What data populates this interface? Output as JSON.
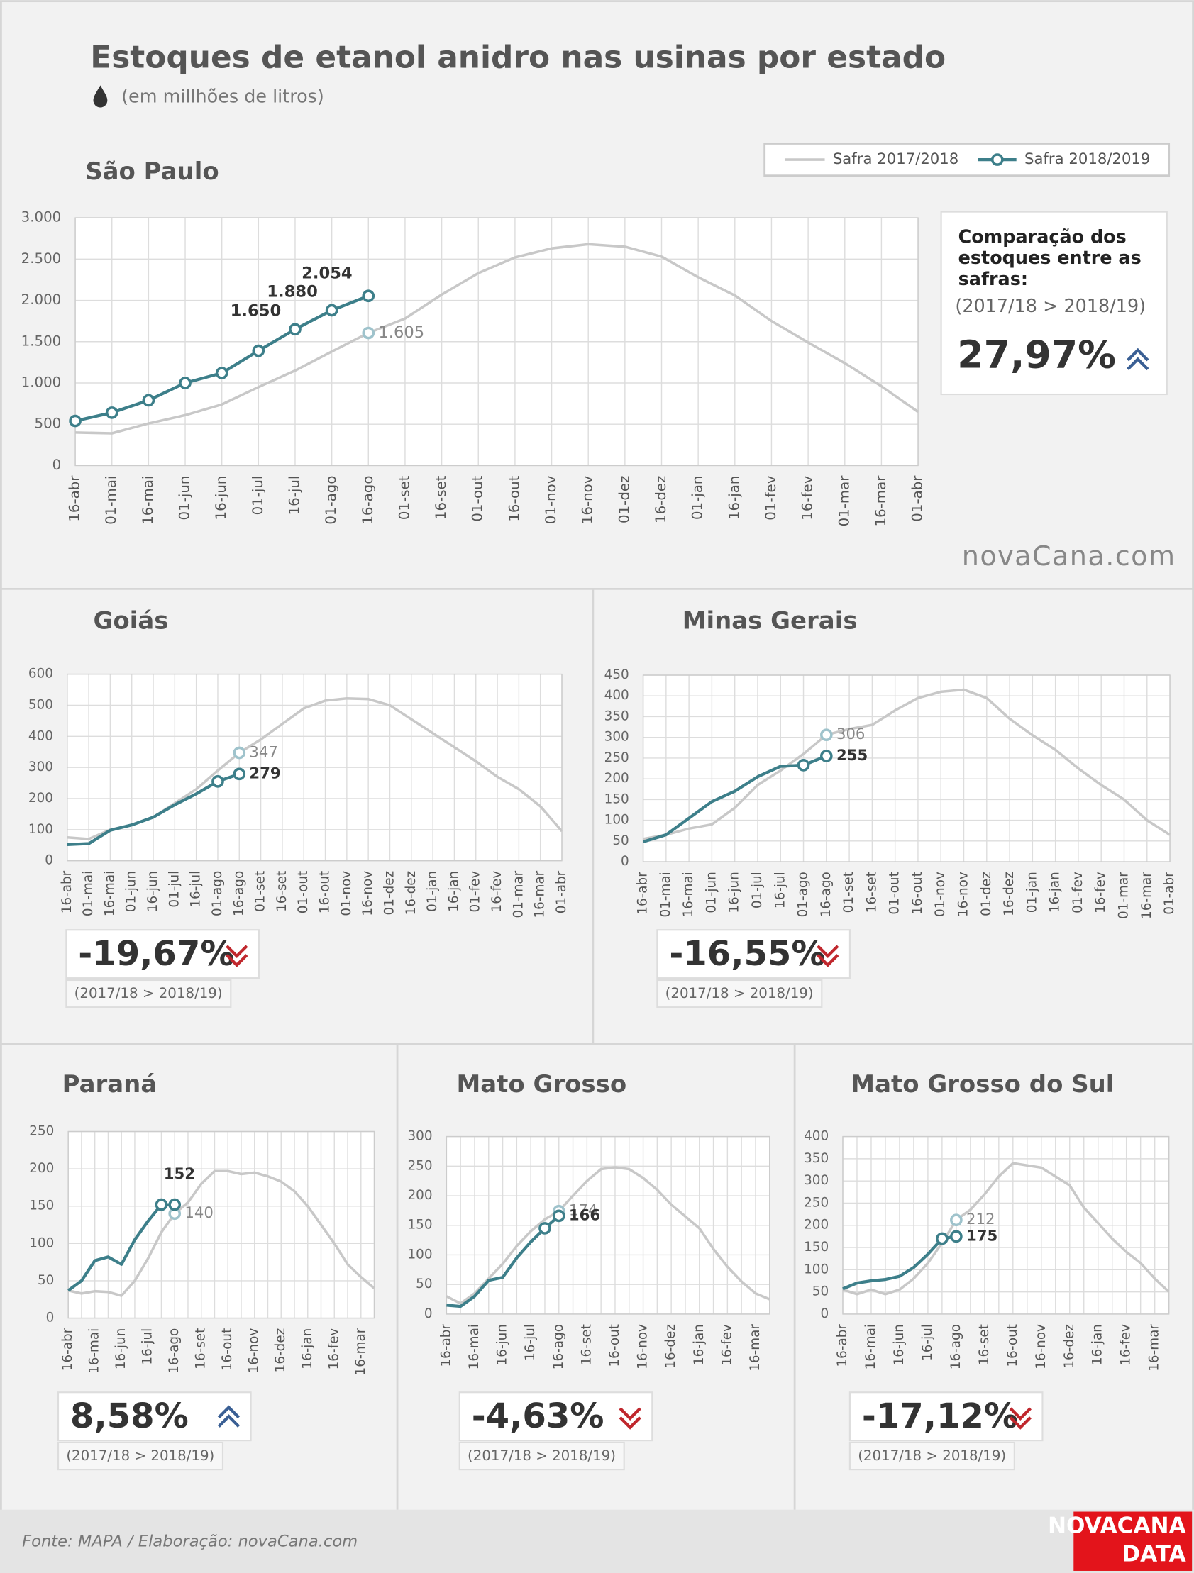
{
  "header": {
    "title": "Estoques de etanol anidro nas usinas por estado",
    "subtitle": "(em millhões de litros)"
  },
  "watermark": "novaCana.com",
  "footer": {
    "source": "Fonte: MAPA  / Elaboração: novaCana.com",
    "logo_top": "NOVACANA",
    "logo_bottom": "DATA"
  },
  "chart_data": [
    {
      "type": "line",
      "title": "São Paulo",
      "categories": [
        "16-abr",
        "01-mai",
        "16-mai",
        "01-jun",
        "16-jun",
        "01-jul",
        "16-jul",
        "01-ago",
        "16-ago",
        "01-set",
        "16-set",
        "01-out",
        "16-out",
        "01-nov",
        "16-nov",
        "01-dez",
        "16-dez",
        "01-jan",
        "16-jan",
        "01-fev",
        "16-fev",
        "01-mar",
        "16-mar",
        "01-abr"
      ],
      "series": [
        {
          "name": "Safra 2017/2018",
          "color": "#c8c8c8",
          "values": [
            400,
            390,
            510,
            610,
            740,
            950,
            1150,
            1380,
            1605,
            1780,
            2070,
            2330,
            2520,
            2630,
            2680,
            2650,
            2530,
            2280,
            2060,
            1750,
            1490,
            1240,
            960,
            650
          ],
          "value_labels": [
            null,
            null,
            null,
            null,
            null,
            null,
            null,
            null,
            "1.605",
            null,
            null,
            null,
            null,
            null,
            null,
            null,
            null,
            null,
            null,
            null,
            null,
            null,
            null,
            null
          ]
        },
        {
          "name": "Safra 2018/2019",
          "color": "#3d7f8a",
          "markers": true,
          "values": [
            540,
            640,
            790,
            1000,
            1120,
            1390,
            1650,
            1880,
            2054,
            null,
            null,
            null,
            null,
            null,
            null,
            null,
            null,
            null,
            null,
            null,
            null,
            null,
            null,
            null
          ],
          "value_labels": [
            null,
            null,
            null,
            null,
            null,
            null,
            "1.650",
            "1.880",
            "2.054",
            null,
            null,
            null,
            null,
            null,
            null,
            null,
            null,
            null,
            null,
            null,
            null,
            null,
            null,
            null
          ]
        }
      ],
      "ylim": [
        0,
        3000
      ],
      "yticks": [
        0,
        500,
        {
          "value": 1000,
          "label": "1.000"
        },
        {
          "value": 1500,
          "label": "1.500"
        },
        {
          "value": 2000,
          "label": "2.000"
        },
        {
          "value": 2500,
          "label": "2.500"
        },
        {
          "value": 3000,
          "label": "3.000"
        }
      ],
      "grid": true,
      "legend": "top-right",
      "comparison": {
        "heading": "Comparação dos estoques entre as safras:",
        "note": "(2017/18 > 2018/19)",
        "value": "27,97%",
        "trend": "up"
      }
    },
    {
      "type": "line",
      "title": "Goiás",
      "categories": [
        "16-abr",
        "01-mai",
        "16-mai",
        "01-jun",
        "16-jun",
        "01-jul",
        "16-jul",
        "01-ago",
        "16-ago",
        "01-set",
        "16-set",
        "01-out",
        "16-out",
        "01-nov",
        "16-nov",
        "01-dez",
        "16-dez",
        "01-jan",
        "16-jan",
        "01-fev",
        "16-fev",
        "01-mar",
        "16-mar",
        "01-abr"
      ],
      "series": [
        {
          "color": "#c8c8c8",
          "values": [
            75,
            70,
            100,
            115,
            140,
            185,
            230,
            290,
            347,
            390,
            440,
            490,
            515,
            522,
            520,
            500,
            455,
            410,
            365,
            320,
            270,
            230,
            175,
            95
          ],
          "value_labels": [
            null,
            null,
            null,
            null,
            null,
            null,
            null,
            null,
            "347",
            null,
            null,
            null,
            null,
            null,
            null,
            null,
            null,
            null,
            null,
            null,
            null,
            null,
            null,
            null
          ]
        },
        {
          "color": "#3d7f8a",
          "values": [
            52,
            55,
            98,
            115,
            140,
            180,
            215,
            255,
            279,
            null,
            null,
            null,
            null,
            null,
            null,
            null,
            null,
            null,
            null,
            null,
            null,
            null,
            null,
            null
          ],
          "value_labels": [
            null,
            null,
            null,
            null,
            null,
            null,
            null,
            null,
            "279",
            null,
            null,
            null,
            null,
            null,
            null,
            null,
            null,
            null,
            null,
            null,
            null,
            null,
            null,
            null
          ]
        }
      ],
      "ylim": [
        0,
        600
      ],
      "yticks": [
        0,
        100,
        200,
        300,
        400,
        500,
        600
      ],
      "grid": true,
      "comparison": {
        "value": "-19,67%",
        "note": "(2017/18 > 2018/19)",
        "trend": "down"
      }
    },
    {
      "type": "line",
      "title": "Minas Gerais",
      "categories": [
        "16-abr",
        "01-mai",
        "16-mai",
        "01-jun",
        "16-jun",
        "01-jul",
        "16-jul",
        "01-ago",
        "16-ago",
        "01-set",
        "16-set",
        "01-out",
        "16-out",
        "01-nov",
        "16-nov",
        "01-dez",
        "16-dez",
        "01-jan",
        "16-jan",
        "01-fev",
        "16-fev",
        "01-mar",
        "16-mar",
        "01-abr"
      ],
      "series": [
        {
          "color": "#c8c8c8",
          "values": [
            55,
            65,
            80,
            90,
            130,
            185,
            220,
            260,
            306,
            320,
            330,
            365,
            395,
            410,
            415,
            395,
            345,
            305,
            270,
            225,
            185,
            150,
            100,
            65
          ],
          "value_labels": [
            null,
            null,
            null,
            null,
            null,
            null,
            null,
            null,
            "306",
            null,
            null,
            null,
            null,
            null,
            null,
            null,
            null,
            null,
            null,
            null,
            null,
            null,
            null,
            null
          ]
        },
        {
          "color": "#3d7f8a",
          "values": [
            48,
            65,
            105,
            145,
            170,
            205,
            230,
            233,
            255,
            null,
            null,
            null,
            null,
            null,
            null,
            null,
            null,
            null,
            null,
            null,
            null,
            null,
            null,
            null
          ],
          "value_labels": [
            null,
            null,
            null,
            null,
            null,
            null,
            null,
            null,
            "255",
            null,
            null,
            null,
            null,
            null,
            null,
            null,
            null,
            null,
            null,
            null,
            null,
            null,
            null,
            null
          ]
        }
      ],
      "ylim": [
        0,
        450
      ],
      "yticks": [
        0,
        50,
        100,
        150,
        200,
        250,
        300,
        350,
        400,
        450
      ],
      "grid": true,
      "comparison": {
        "value": "-16,55%",
        "note": "(2017/18 > 2018/19)",
        "trend": "down"
      }
    },
    {
      "type": "line",
      "title": "Paraná",
      "categories": [
        "16-abr",
        null,
        "16-mai",
        null,
        "16-jun",
        null,
        "16-jul",
        null,
        "16-ago",
        null,
        "16-set",
        null,
        "16-out",
        null,
        "16-nov",
        null,
        "16-dez",
        null,
        "16-jan",
        null,
        "16-fev",
        null,
        "16-mar",
        null
      ],
      "series": [
        {
          "color": "#c8c8c8",
          "values": [
            37,
            33,
            36,
            35,
            30,
            50,
            80,
            115,
            140,
            155,
            180,
            197,
            197,
            193,
            195,
            190,
            183,
            170,
            150,
            125,
            100,
            72,
            55,
            40
          ],
          "value_labels": [
            null,
            null,
            null,
            null,
            null,
            null,
            null,
            null,
            "140",
            null,
            null,
            null,
            null,
            null,
            null,
            null,
            null,
            null,
            null,
            null,
            null,
            null,
            null,
            null
          ]
        },
        {
          "color": "#3d7f8a",
          "values": [
            37,
            50,
            77,
            82,
            72,
            105,
            130,
            152,
            152,
            null,
            null,
            null,
            null,
            null,
            null,
            null,
            null,
            null,
            null,
            null,
            null,
            null,
            null,
            null
          ],
          "value_labels": [
            null,
            null,
            null,
            null,
            null,
            null,
            null,
            "152",
            null,
            null,
            null,
            null,
            null,
            null,
            null,
            null,
            null,
            null,
            null,
            null,
            null,
            null,
            null,
            null
          ]
        }
      ],
      "ylim": [
        0,
        250
      ],
      "yticks": [
        0,
        50,
        100,
        150,
        200,
        250
      ],
      "grid": true,
      "comparison": {
        "value": "8,58%",
        "note": "(2017/18 > 2018/19)",
        "trend": "up"
      }
    },
    {
      "type": "line",
      "title": "Mato Grosso",
      "categories": [
        "16-abr",
        null,
        "16-mai",
        null,
        "16-jun",
        null,
        "16-jul",
        null,
        "16-ago",
        null,
        "16-set",
        null,
        "16-out",
        null,
        "16-nov",
        null,
        "16-dez",
        null,
        "16-jan",
        null,
        "16-fev",
        null,
        "16-mar",
        null
      ],
      "series": [
        {
          "color": "#c8c8c8",
          "values": [
            30,
            18,
            35,
            60,
            85,
            115,
            140,
            160,
            174,
            200,
            225,
            245,
            248,
            245,
            230,
            210,
            185,
            165,
            145,
            110,
            80,
            55,
            35,
            25
          ],
          "value_labels": [
            null,
            null,
            null,
            null,
            null,
            null,
            null,
            null,
            "174",
            null,
            null,
            null,
            null,
            null,
            null,
            null,
            null,
            null,
            null,
            null,
            null,
            null,
            null,
            null
          ]
        },
        {
          "color": "#3d7f8a",
          "values": [
            15,
            13,
            30,
            57,
            62,
            95,
            122,
            145,
            166,
            null,
            null,
            null,
            null,
            null,
            null,
            null,
            null,
            null,
            null,
            null,
            null,
            null,
            null,
            null
          ],
          "value_labels": [
            null,
            null,
            null,
            null,
            null,
            null,
            null,
            null,
            "166",
            null,
            null,
            null,
            null,
            null,
            null,
            null,
            null,
            null,
            null,
            null,
            null,
            null,
            null,
            null
          ]
        }
      ],
      "ylim": [
        0,
        300
      ],
      "yticks": [
        0,
        50,
        100,
        150,
        200,
        250,
        300
      ],
      "grid": true,
      "comparison": {
        "value": "-4,63%",
        "note": "(2017/18 > 2018/19)",
        "trend": "down"
      }
    },
    {
      "type": "line",
      "title": "Mato Grosso do Sul",
      "categories": [
        "16-abr",
        null,
        "16-mai",
        null,
        "16-jun",
        null,
        "16-jul",
        null,
        "16-ago",
        null,
        "16-set",
        null,
        "16-out",
        null,
        "16-nov",
        null,
        "16-dez",
        null,
        "16-jan",
        null,
        "16-fev",
        null,
        "16-mar",
        null
      ],
      "series": [
        {
          "color": "#c8c8c8",
          "values": [
            55,
            45,
            55,
            45,
            55,
            80,
            115,
            160,
            212,
            235,
            270,
            310,
            340,
            335,
            330,
            310,
            290,
            240,
            205,
            170,
            140,
            115,
            80,
            50
          ],
          "value_labels": [
            null,
            null,
            null,
            null,
            null,
            null,
            null,
            null,
            "212",
            null,
            null,
            null,
            null,
            null,
            null,
            null,
            null,
            null,
            null,
            null,
            null,
            null,
            null,
            null
          ]
        },
        {
          "color": "#3d7f8a",
          "values": [
            57,
            70,
            75,
            78,
            85,
            105,
            135,
            170,
            175,
            null,
            null,
            null,
            null,
            null,
            null,
            null,
            null,
            null,
            null,
            null,
            null,
            null,
            null,
            null
          ],
          "value_labels": [
            null,
            null,
            null,
            null,
            null,
            null,
            null,
            null,
            "175",
            null,
            null,
            null,
            null,
            null,
            null,
            null,
            null,
            null,
            null,
            null,
            null,
            null,
            null,
            null
          ]
        }
      ],
      "ylim": [
        0,
        400
      ],
      "yticks": [
        0,
        50,
        100,
        150,
        200,
        250,
        300,
        350,
        400
      ],
      "grid": true,
      "comparison": {
        "value": "-17,12%",
        "note": "(2017/18 > 2018/19)",
        "trend": "down"
      }
    }
  ]
}
